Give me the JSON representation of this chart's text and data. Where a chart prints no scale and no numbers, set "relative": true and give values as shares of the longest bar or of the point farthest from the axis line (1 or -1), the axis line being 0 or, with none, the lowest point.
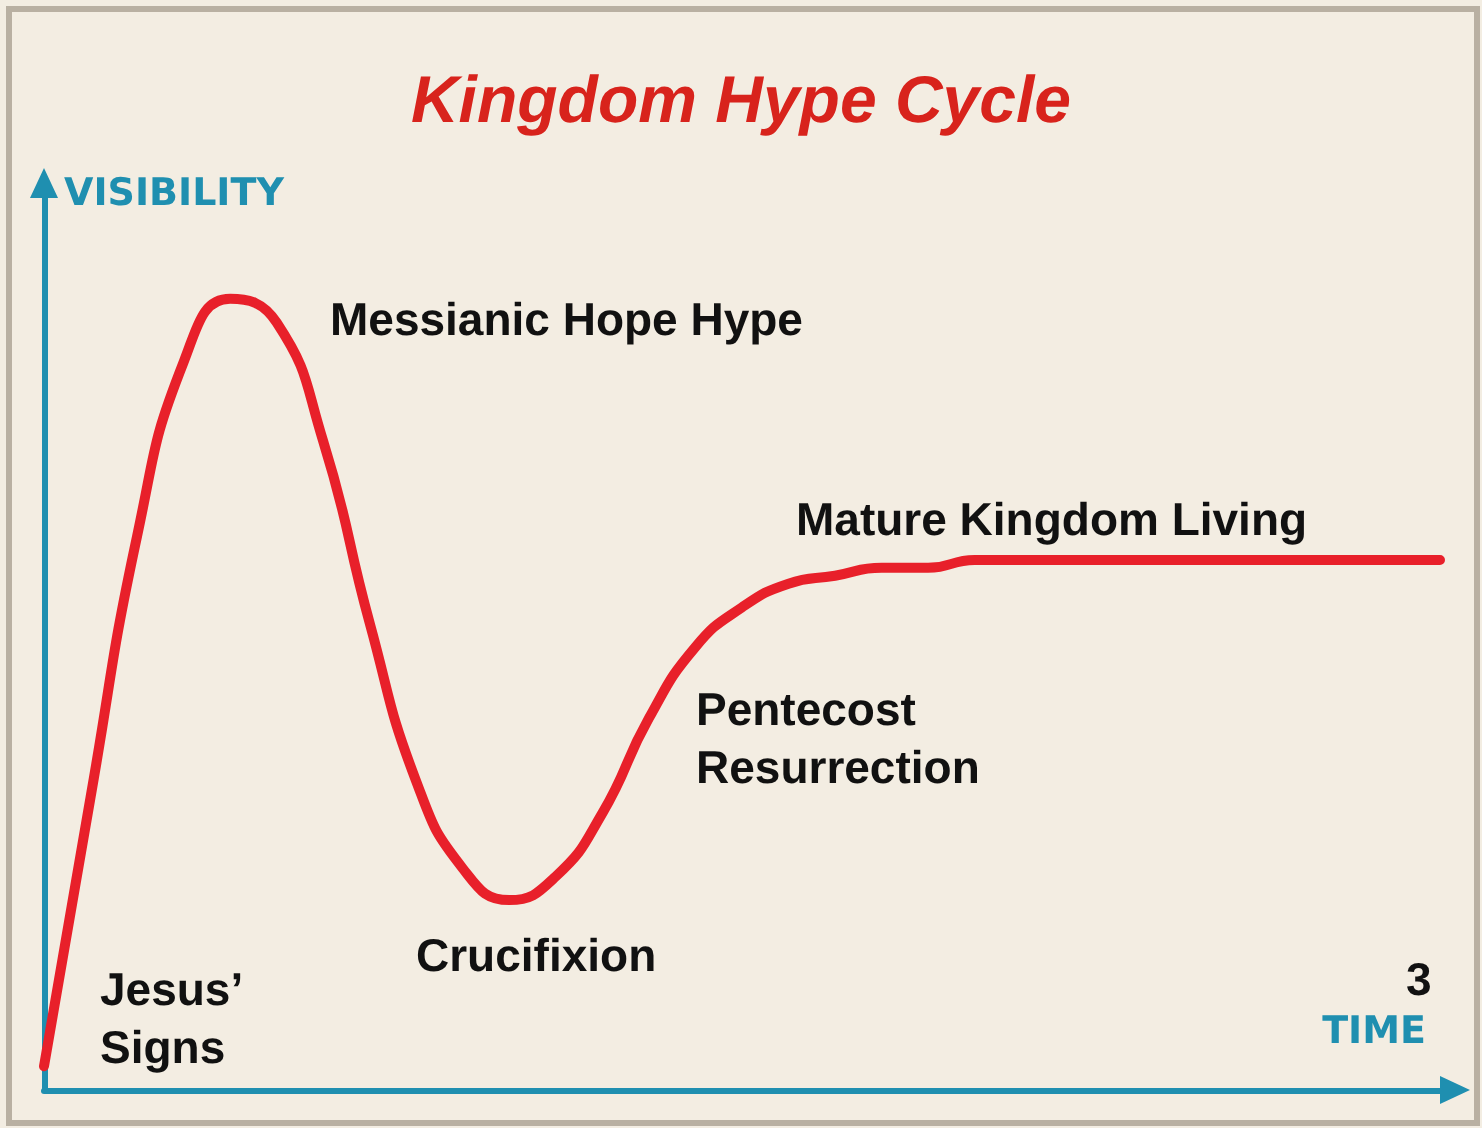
{
  "chart_data": {
    "type": "line",
    "title": "Kingdom Hype Cycle",
    "xlabel": "TIME",
    "ylabel": "VISIBILITY",
    "relative": true,
    "categories": [
      null,
      null,
      null,
      null,
      null,
      null,
      null,
      null,
      null,
      null,
      null,
      null,
      null,
      null,
      null,
      null,
      null,
      null,
      null,
      null,
      null,
      null,
      null,
      null,
      null,
      null,
      null,
      null,
      null,
      null,
      null
    ],
    "series": [
      {
        "color": "#e8202a",
        "values": [
          0.03,
          0.37,
          0.7,
          0.92,
          1.0,
          0.97,
          0.82,
          0.59,
          0.39,
          0.28,
          0.24,
          0.27,
          0.35,
          0.47,
          0.56,
          0.61,
          0.64,
          0.65,
          0.66,
          0.66,
          0.67,
          0.67,
          0.67,
          0.67,
          0.67,
          0.67,
          0.67,
          0.67,
          0.67,
          0.67,
          0.67
        ]
      }
    ],
    "annotations": [
      "Messianic Hope Hype",
      "Mature Kingdom Living",
      "Pentecost\nResurrection",
      "Crucifixion",
      "Jesus’\nSigns",
      "3"
    ],
    "marker": "none",
    "line_style": "solid",
    "grid": false
  }
}
